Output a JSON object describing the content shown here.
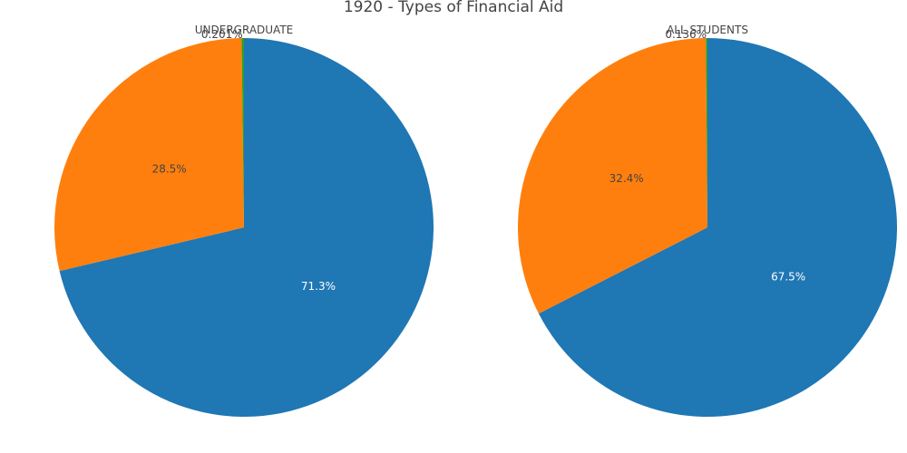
{
  "chart_data": {
    "type": "pie",
    "title": "1920 - Types of Financial Aid",
    "colors": [
      "#1f77b4",
      "#ff7f0e",
      "#2ca02c"
    ],
    "pies": [
      {
        "name": "UNDERGRADUATE",
        "values": [
          71.3,
          28.5,
          0.201
        ],
        "labels": [
          "71.3%",
          "28.5%",
          "0.201%"
        ]
      },
      {
        "name": "ALL STUDENTS",
        "values": [
          67.5,
          32.4,
          0.136
        ],
        "labels": [
          "67.5%",
          "32.4%",
          "0.136%"
        ]
      }
    ]
  }
}
